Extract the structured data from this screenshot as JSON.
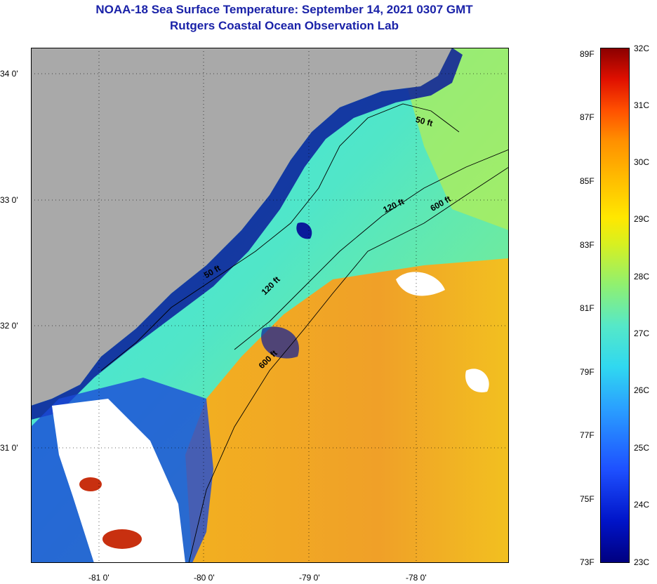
{
  "header": {
    "title": "NOAA-18 Sea Surface Temperature:  September 14, 2021 0307 GMT",
    "subtitle": "Rutgers Coastal Ocean Observation Lab"
  },
  "map": {
    "lat_labels": [
      "34 0'",
      "33 0'",
      "32 0'",
      "31 0'"
    ],
    "lon_labels": [
      "-81 0'",
      "-80 0'",
      "-79 0'",
      "-78 0'"
    ],
    "contour_labels": [
      "50 ft",
      "120 ft",
      "600 ft",
      "50 ft",
      "120 ft",
      "600 ft"
    ],
    "colors": {
      "land": "#a9a9a9",
      "cloud": "#ffffff",
      "cold": "#0a1a9a",
      "mid": "#30e0e0",
      "warm": "#f0a020"
    }
  },
  "colorbar": {
    "fahrenheit": [
      "89F",
      "87F",
      "85F",
      "83F",
      "81F",
      "79F",
      "77F",
      "75F",
      "73F"
    ],
    "celsius": [
      "32C",
      "31C",
      "30C",
      "29C",
      "28C",
      "27C",
      "26C",
      "25C",
      "24C",
      "23C"
    ]
  }
}
